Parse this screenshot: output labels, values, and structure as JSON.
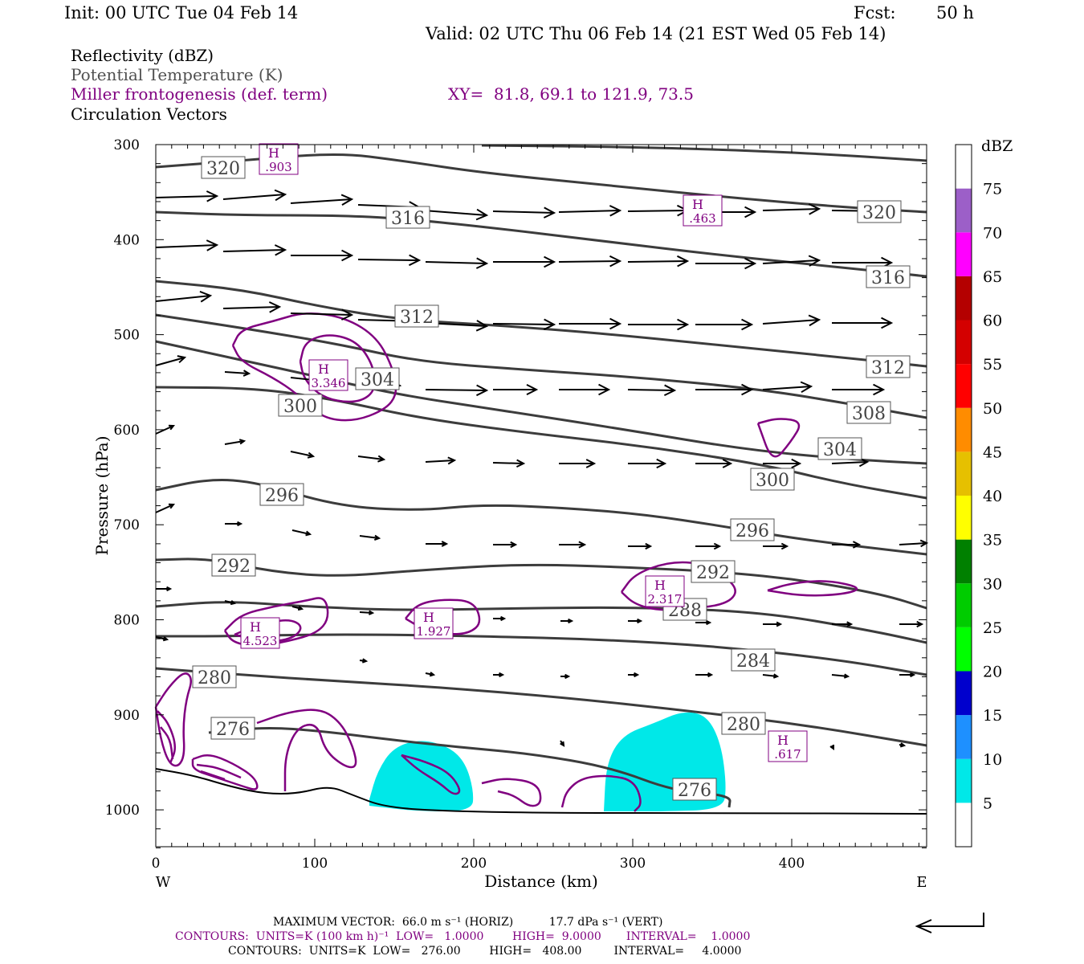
{
  "header": {
    "init": "Init: 00 UTC Tue 04 Feb 14",
    "fcst_label": "Fcst:",
    "fcst_value": "50 h",
    "valid": "Valid: 02 UTC Thu 06 Feb 14 (21 EST Wed 05 Feb 14)"
  },
  "legend": {
    "reflectivity": "Reflectivity (dBZ)",
    "theta": "Potential Temperature (K)",
    "frontogenesis": "Miller frontogenesis (def. term)",
    "xy": "XY=  81.8, 69.1 to 121.9, 73.5",
    "vectors": "Circulation Vectors"
  },
  "colors": {
    "theta_contour": "#3c3c3c",
    "frontogenesis_contour": "#800080",
    "reflectivity_fill": "#00e8e8",
    "vectors": "#000000"
  },
  "chart_data": {
    "type": "cross-section",
    "xlabel": "Distance (km)",
    "ylabel": "Pressure (hPa)",
    "xlim": [
      0,
      485
    ],
    "ylim": [
      1040,
      300
    ],
    "x_ticks": [
      0,
      100,
      200,
      300,
      400
    ],
    "y_ticks": [
      300,
      400,
      500,
      600,
      700,
      800,
      900,
      1000
    ],
    "x_ends": [
      "W",
      "E"
    ],
    "colorbar": {
      "unit": "dBZ",
      "levels": [
        5,
        10,
        15,
        20,
        25,
        30,
        35,
        40,
        45,
        50,
        55,
        60,
        65,
        70,
        75
      ],
      "colors": [
        "#00e8e8",
        "#1e90ff",
        "#0000cd",
        "#00ff00",
        "#00cc00",
        "#008000",
        "#ffff00",
        "#e6c000",
        "#ff8c00",
        "#ff0000",
        "#d40000",
        "#b40000",
        "#ff00ff",
        "#9c5fc8",
        "#ffffff"
      ]
    },
    "theta_labels": [
      "320",
      "320",
      "316",
      "316",
      "312",
      "312",
      "308",
      "304",
      "304",
      "300",
      "300",
      "296",
      "296",
      "292",
      "292",
      "288",
      "284",
      "280",
      "280",
      "276",
      "276"
    ],
    "frontogenesis_maxima": [
      ".903",
      ".463",
      "3.346",
      "4.523",
      "1.927",
      "2.317",
      ".617"
    ],
    "frontogenesis_max_label": "H",
    "reflectivity_areas": [
      {
        "x_range": [
          133,
          200
        ],
        "p_top": 930,
        "value": "5-10 dBZ"
      },
      {
        "x_range": [
          282,
          360
        ],
        "p_top": 897,
        "value": "5-10 dBZ"
      }
    ]
  },
  "footer": {
    "max_vector": "MAXIMUM VECTOR:  66.0 m s⁻¹ (HORIZ)          17.7 dPa s⁻¹ (VERT)",
    "contours_purple": "CONTOURS:  UNITS=K (100 km h)⁻¹  LOW=   1.0000        HIGH=  9.0000       INTERVAL=    1.0000",
    "contours_black": "CONTOURS:  UNITS=K  LOW=   276.00        HIGH=   408.00         INTERVAL=     4.0000"
  }
}
